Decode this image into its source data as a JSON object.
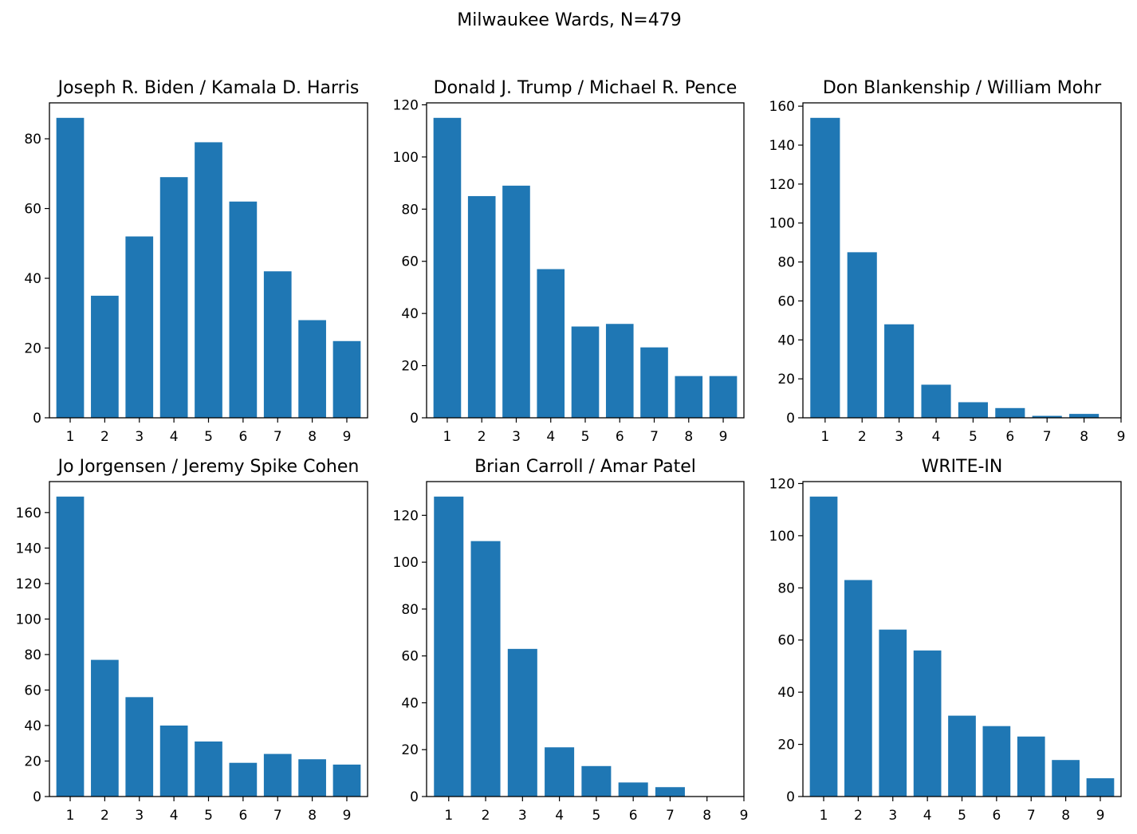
{
  "figure": {
    "title": "Milwaukee Wards, N=479",
    "bar_color": "#1f77b4"
  },
  "chart_data": [
    {
      "type": "bar",
      "title": "Joseph R. Biden / Kamala D. Harris",
      "categories": [
        "1",
        "2",
        "3",
        "4",
        "5",
        "6",
        "7",
        "8",
        "9"
      ],
      "values": [
        86,
        35,
        52,
        69,
        79,
        62,
        42,
        28,
        22
      ],
      "xlim": [
        0.4,
        9.6
      ],
      "ylim": [
        0,
        90.3
      ],
      "yticks": [
        0,
        20,
        40,
        60,
        80
      ],
      "xticks": [
        1,
        2,
        3,
        4,
        5,
        6,
        7,
        8,
        9
      ]
    },
    {
      "type": "bar",
      "title": "Donald J. Trump / Michael R. Pence",
      "categories": [
        "1",
        "2",
        "3",
        "4",
        "5",
        "6",
        "7",
        "8",
        "9"
      ],
      "values": [
        115,
        85,
        89,
        57,
        35,
        36,
        27,
        16,
        16
      ],
      "xlim": [
        0.4,
        9.6
      ],
      "ylim": [
        0,
        120.75
      ],
      "yticks": [
        0,
        20,
        40,
        60,
        80,
        100,
        120
      ],
      "xticks": [
        1,
        2,
        3,
        4,
        5,
        6,
        7,
        8,
        9
      ]
    },
    {
      "type": "bar",
      "title": "Don Blankenship / William Mohr",
      "categories": [
        "1",
        "2",
        "3",
        "4",
        "5",
        "6",
        "7",
        "8"
      ],
      "values": [
        154,
        85,
        48,
        17,
        8,
        5,
        1,
        2
      ],
      "xlim": [
        0.4,
        9.0
      ],
      "ylim": [
        0,
        161.7
      ],
      "yticks": [
        0,
        20,
        40,
        60,
        80,
        100,
        120,
        140,
        160
      ],
      "xticks": [
        1,
        2,
        3,
        4,
        5,
        6,
        7,
        8,
        9
      ]
    },
    {
      "type": "bar",
      "title": "Jo Jorgensen / Jeremy Spike Cohen",
      "categories": [
        "1",
        "2",
        "3",
        "4",
        "5",
        "6",
        "7",
        "8",
        "9"
      ],
      "values": [
        169,
        77,
        56,
        40,
        31,
        19,
        24,
        21,
        18
      ],
      "xlim": [
        0.4,
        9.6
      ],
      "ylim": [
        0,
        177.45
      ],
      "yticks": [
        0,
        20,
        40,
        60,
        80,
        100,
        120,
        140,
        160
      ],
      "xticks": [
        1,
        2,
        3,
        4,
        5,
        6,
        7,
        8,
        9
      ]
    },
    {
      "type": "bar",
      "title": "Brian Carroll / Amar Patel",
      "categories": [
        "1",
        "2",
        "3",
        "4",
        "5",
        "6",
        "7"
      ],
      "values": [
        128,
        109,
        63,
        21,
        13,
        6,
        4
      ],
      "xlim": [
        0.4,
        9.0
      ],
      "ylim": [
        0,
        134.4
      ],
      "yticks": [
        0,
        20,
        40,
        60,
        80,
        100,
        120
      ],
      "xticks": [
        1,
        2,
        3,
        4,
        5,
        6,
        7,
        8,
        9
      ]
    },
    {
      "type": "bar",
      "title": "WRITE-IN",
      "categories": [
        "1",
        "2",
        "3",
        "4",
        "5",
        "6",
        "7",
        "8",
        "9"
      ],
      "values": [
        115,
        83,
        64,
        56,
        31,
        27,
        23,
        14,
        7
      ],
      "xlim": [
        0.4,
        9.6
      ],
      "ylim": [
        0,
        120.75
      ],
      "yticks": [
        0,
        20,
        40,
        60,
        80,
        100,
        120
      ],
      "xticks": [
        1,
        2,
        3,
        4,
        5,
        6,
        7,
        8,
        9
      ]
    }
  ]
}
